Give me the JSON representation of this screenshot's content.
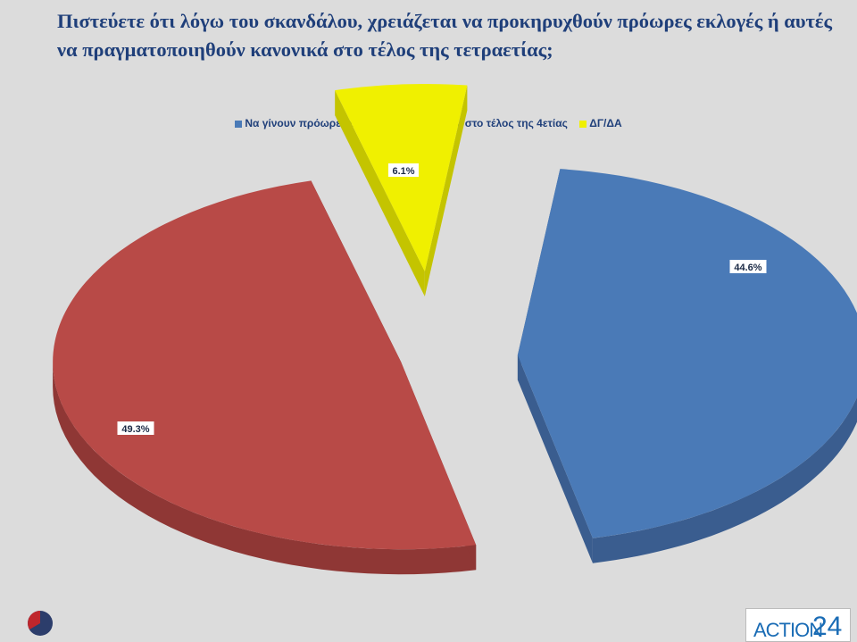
{
  "title": "Πιστεύετε ότι λόγω του σκανδάλου, χρειάζεται να προκηρυχθούν πρόωρες εκλογές ή αυτές να πραγματοποιηθούν κανονικά στο τέλος της τετραετίας;",
  "chart_data": {
    "type": "pie",
    "style": "3d-exploded",
    "legend_position": "top",
    "series": [
      {
        "name": "Να γίνουν πρόωρες εκλογές",
        "value": 44.6,
        "label": "44.6%",
        "color": "#4a7ab7",
        "side_color": "#3a5d8f"
      },
      {
        "name": "Να γίνουν στο τέλος της 4ετίας",
        "value": 49.3,
        "label": "49.3%",
        "color": "#b84a47",
        "side_color": "#8f3735"
      },
      {
        "name": "ΔΓ/ΔΑ",
        "value": 6.1,
        "label": "6.1%",
        "color": "#f0f000",
        "side_color": "#c4c400"
      }
    ]
  },
  "logo": {
    "word": "ACTION",
    "number": "24"
  }
}
